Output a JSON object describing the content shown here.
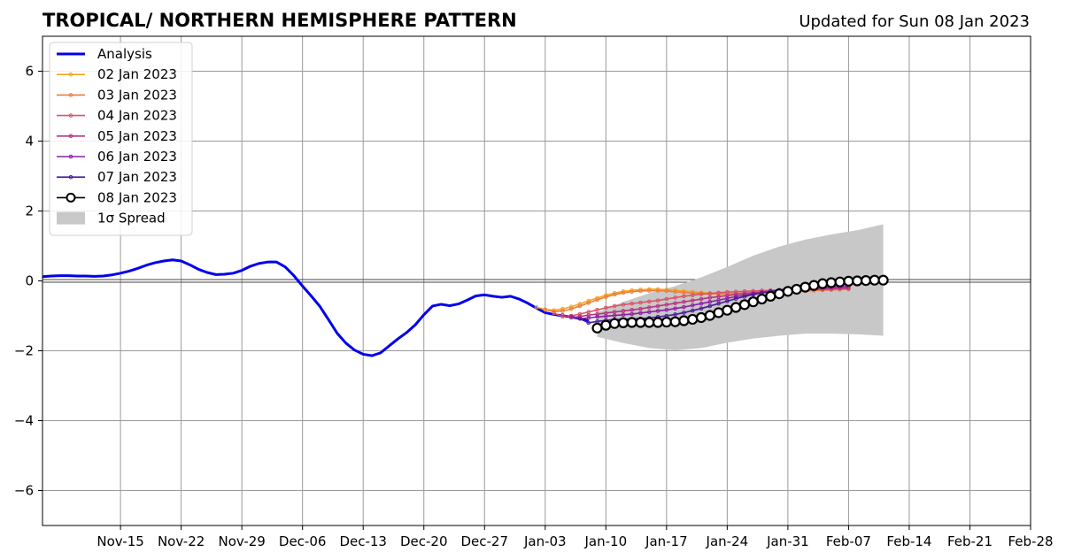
{
  "chart_data": {
    "type": "line",
    "title": "TROPICAL/ NORTHERN HEMISPHERE PATTERN",
    "subtitle": "Updated for Sun 08 Jan 2023",
    "xlabel": "",
    "ylabel": "",
    "xlim": [
      "2022-11-06",
      "2023-02-28"
    ],
    "ylim": [
      -7,
      7
    ],
    "grid": true,
    "legend_position": "top-left",
    "x_ticks": [
      "2022-11-15",
      "2022-11-22",
      "2022-11-29",
      "2022-12-06",
      "2022-12-13",
      "2022-12-20",
      "2022-12-27",
      "2023-01-03",
      "2023-01-10",
      "2023-01-17",
      "2023-01-24",
      "2023-01-31",
      "2023-02-07",
      "2023-02-14",
      "2023-02-21",
      "2023-02-28"
    ],
    "x_tick_labels": [
      "Nov-15",
      "Nov-22",
      "Nov-29",
      "Dec-06",
      "Dec-13",
      "Dec-20",
      "Dec-27",
      "Jan-03",
      "Jan-10",
      "Jan-17",
      "Jan-24",
      "Jan-31",
      "Feb-07",
      "Feb-14",
      "Feb-21",
      "Feb-28"
    ],
    "y_ticks": [
      -6,
      -4,
      -2,
      0,
      2,
      4,
      6
    ],
    "y_tick_labels": [
      "−6",
      "−4",
      "−2",
      "0",
      "2",
      "4",
      "6"
    ],
    "analysis": {
      "name": "Analysis",
      "color": "#0000ee",
      "start": "2022-11-06",
      "values": [
        0.12,
        0.14,
        0.15,
        0.15,
        0.14,
        0.14,
        0.13,
        0.14,
        0.17,
        0.22,
        0.28,
        0.36,
        0.45,
        0.52,
        0.57,
        0.6,
        0.57,
        0.46,
        0.33,
        0.24,
        0.18,
        0.19,
        0.22,
        0.3,
        0.42,
        0.5,
        0.54,
        0.54,
        0.4,
        0.15,
        -0.15,
        -0.43,
        -0.73,
        -1.11,
        -1.5,
        -1.78,
        -1.98,
        -2.1,
        -2.14,
        -2.06,
        -1.86,
        -1.66,
        -1.48,
        -1.26,
        -0.97,
        -0.72,
        -0.67,
        -0.71,
        -0.66,
        -0.55,
        -0.43,
        -0.4,
        -0.44,
        -0.47,
        -0.44,
        -0.52,
        -0.64,
        -0.78,
        -0.91,
        -0.96,
        -1.0,
        -1.03,
        -1.08,
        -1.15
      ]
    },
    "series": [
      {
        "name": "02 Jan 2023",
        "color": "#f5a623",
        "start": "2023-01-02",
        "values": [
          -0.75,
          -0.82,
          -0.84,
          -0.8,
          -0.74,
          -0.66,
          -0.57,
          -0.49,
          -0.41,
          -0.35,
          -0.3,
          -0.27,
          -0.25,
          -0.24,
          -0.24,
          -0.25,
          -0.27,
          -0.29,
          -0.31,
          -0.33,
          -0.35,
          -0.36,
          -0.37,
          -0.37,
          -0.36,
          -0.35,
          -0.33,
          -0.31,
          -0.29,
          -0.27,
          -0.25,
          -0.24,
          -0.23,
          -0.22,
          -0.21,
          -0.2,
          -0.19
        ]
      },
      {
        "name": "03 Jan 2023",
        "color": "#ee7d3a",
        "start": "2023-01-03",
        "values": [
          -0.82,
          -0.88,
          -0.86,
          -0.8,
          -0.72,
          -0.63,
          -0.54,
          -0.46,
          -0.39,
          -0.34,
          -0.31,
          -0.29,
          -0.28,
          -0.28,
          -0.29,
          -0.31,
          -0.33,
          -0.35,
          -0.36,
          -0.37,
          -0.37,
          -0.37,
          -0.36,
          -0.35,
          -0.34,
          -0.33,
          -0.32,
          -0.31,
          -0.3,
          -0.3,
          -0.29,
          -0.28,
          -0.27,
          -0.26,
          -0.25,
          -0.24
        ]
      },
      {
        "name": "04 Jan 2023",
        "color": "#d9546a",
        "start": "2023-01-04",
        "values": [
          -0.92,
          -1.02,
          -1.0,
          -0.95,
          -0.89,
          -0.83,
          -0.77,
          -0.72,
          -0.68,
          -0.65,
          -0.62,
          -0.59,
          -0.56,
          -0.52,
          -0.48,
          -0.44,
          -0.41,
          -0.38,
          -0.36,
          -0.34,
          -0.32,
          -0.31,
          -0.3,
          -0.29,
          -0.28,
          -0.27,
          -0.27,
          -0.26,
          -0.25,
          -0.25,
          -0.24,
          -0.24,
          -0.23,
          -0.22,
          -0.22
        ]
      },
      {
        "name": "05 Jan 2023",
        "color": "#b8347f",
        "start": "2023-01-05",
        "values": [
          -0.98,
          -1.05,
          -1.02,
          -0.98,
          -0.95,
          -0.92,
          -0.89,
          -0.86,
          -0.83,
          -0.8,
          -0.76,
          -0.72,
          -0.68,
          -0.64,
          -0.6,
          -0.56,
          -0.52,
          -0.48,
          -0.45,
          -0.42,
          -0.39,
          -0.36,
          -0.34,
          -0.32,
          -0.3,
          -0.28,
          -0.27,
          -0.26,
          -0.25,
          -0.24,
          -0.23,
          -0.22,
          -0.21,
          -0.2
        ]
      },
      {
        "name": "06 Jan 2023",
        "color": "#8e1fa3",
        "start": "2023-01-06",
        "values": [
          -1.02,
          -1.08,
          -1.06,
          -1.03,
          -1.01,
          -0.99,
          -0.97,
          -0.95,
          -0.92,
          -0.89,
          -0.86,
          -0.83,
          -0.79,
          -0.75,
          -0.7,
          -0.65,
          -0.6,
          -0.55,
          -0.5,
          -0.45,
          -0.41,
          -0.37,
          -0.34,
          -0.31,
          -0.28,
          -0.26,
          -0.24,
          -0.22,
          -0.2,
          -0.19,
          -0.18,
          -0.17,
          -0.16
        ]
      },
      {
        "name": "07 Jan 2023",
        "color": "#4b1c9a",
        "start": "2023-01-07",
        "values": [
          -1.08,
          -1.2,
          -1.16,
          -1.13,
          -1.11,
          -1.1,
          -1.09,
          -1.08,
          -1.06,
          -1.03,
          -1.0,
          -0.96,
          -0.91,
          -0.85,
          -0.79,
          -0.72,
          -0.65,
          -0.58,
          -0.51,
          -0.45,
          -0.39,
          -0.34,
          -0.3,
          -0.26,
          -0.23,
          -0.2,
          -0.18,
          -0.16,
          -0.14,
          -0.12,
          -0.1,
          -0.09
        ]
      },
      {
        "name": "08 Jan 2023",
        "color": "#000000",
        "start": "2023-01-09",
        "values": [
          -1.35,
          -1.27,
          -1.22,
          -1.2,
          -1.19,
          -1.19,
          -1.19,
          -1.19,
          -1.18,
          -1.17,
          -1.14,
          -1.1,
          -1.05,
          -0.99,
          -0.91,
          -0.84,
          -0.76,
          -0.68,
          -0.6,
          -0.52,
          -0.44,
          -0.37,
          -0.3,
          -0.24,
          -0.18,
          -0.13,
          -0.08,
          -0.05,
          -0.03,
          -0.01,
          0.0,
          0.01,
          0.02,
          0.02
        ]
      }
    ],
    "spread": {
      "name": "1σ Spread",
      "color": "#c8c8c8",
      "x": [
        "2023-01-09",
        "2023-01-12",
        "2023-01-15",
        "2023-01-18",
        "2023-01-21",
        "2023-01-24",
        "2023-01-27",
        "2023-01-30",
        "2023-02-02",
        "2023-02-05",
        "2023-02-08",
        "2023-02-11"
      ],
      "upper": [
        -0.9,
        -0.6,
        -0.35,
        -0.15,
        0.1,
        0.4,
        0.72,
        0.98,
        1.18,
        1.33,
        1.45,
        1.62
      ],
      "lower": [
        -1.6,
        -1.78,
        -1.92,
        -1.99,
        -1.92,
        -1.77,
        -1.65,
        -1.57,
        -1.51,
        -1.51,
        -1.53,
        -1.57
      ]
    }
  }
}
